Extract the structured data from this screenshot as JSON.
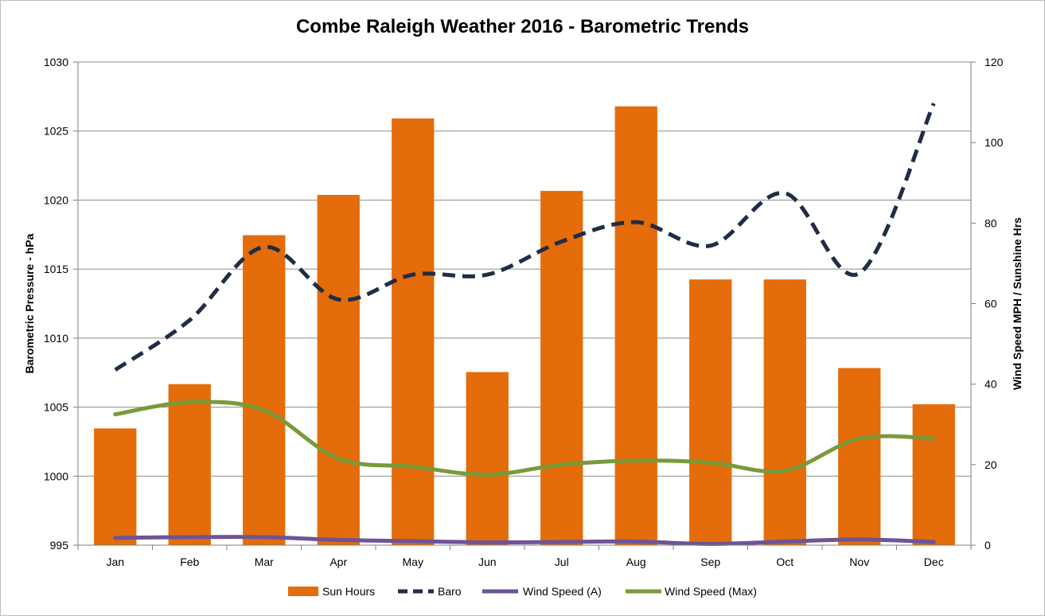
{
  "chart_data": {
    "type": "bar",
    "title": "Combe Raleigh Weather 2016 - Barometric Trends",
    "ylabel_left": "Barometric Pressure - hPa",
    "ylabel_right": "Wind Speed MPH / Sunshine Hrs",
    "categories": [
      "Jan",
      "Feb",
      "Mar",
      "Apr",
      "May",
      "Jun",
      "Jul",
      "Aug",
      "Sep",
      "Oct",
      "Nov",
      "Dec"
    ],
    "ylim_left": [
      995,
      1030
    ],
    "ylim_right": [
      0,
      120
    ],
    "yticks_left": [
      995,
      1000,
      1005,
      1010,
      1015,
      1020,
      1025,
      1030
    ],
    "yticks_right": [
      0,
      20,
      40,
      60,
      80,
      100,
      120
    ],
    "grid": true,
    "legend_position": "bottom",
    "series": [
      {
        "name": "Sun Hours",
        "kind": "bar",
        "axis": "right",
        "color": "#e46c0a",
        "values": [
          29,
          40,
          77,
          87,
          106,
          43,
          88,
          109,
          66,
          66,
          44,
          35
        ]
      },
      {
        "name": "Baro",
        "kind": "line",
        "style": "dashed",
        "axis": "left",
        "color": "#1f2d46",
        "values": [
          1007.7,
          1011.3,
          1016.6,
          1012.8,
          1014.6,
          1014.6,
          1017.0,
          1018.4,
          1016.7,
          1020.5,
          1014.7,
          1027.0
        ]
      },
      {
        "name": "Wind Speed (A)",
        "kind": "line",
        "style": "solid",
        "axis": "right",
        "color": "#6e5497",
        "values": [
          1.8,
          2.0,
          2.0,
          1.3,
          1.0,
          0.7,
          0.8,
          0.9,
          0.3,
          0.9,
          1.4,
          0.8
        ]
      },
      {
        "name": "Wind Speed (Max)",
        "kind": "line",
        "style": "solid",
        "axis": "right",
        "color": "#7a9a3a",
        "values": [
          32.5,
          35.5,
          33.5,
          21.5,
          19.5,
          17.5,
          20.0,
          21.0,
          20.5,
          18.5,
          26.5,
          26.5
        ]
      }
    ]
  }
}
